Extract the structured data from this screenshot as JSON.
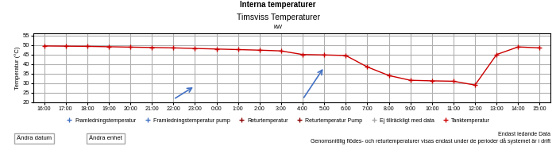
{
  "chart_data": {
    "type": "line",
    "header": "Interna temperaturer",
    "title": "Timsviss Temperaturer",
    "subtitle": "kW",
    "ylabel": "Temperatur (°C)",
    "categories": [
      "16:00",
      "17:00",
      "18:00",
      "19:00",
      "20:00",
      "21:00",
      "22:00",
      "23:00",
      "0:00",
      "1:00",
      "2:00",
      "3:00",
      "4:00",
      "5:00",
      "6:00",
      "7:00",
      "8:00",
      "9:00",
      "10:00",
      "11:00",
      "12:00",
      "13:00",
      "14:00",
      "15:00"
    ],
    "series": [
      {
        "values": [
          49.5,
          49.4,
          49.3,
          49.1,
          48.9,
          48.7,
          48.5,
          48.2,
          47.9,
          47.6,
          47.3,
          46.9,
          45.0,
          44.8,
          44.5,
          38.5,
          34.0,
          31.5,
          31.2,
          31.0,
          29.0,
          45.0,
          49.0,
          48.5
        ],
        "color": "#cc0000",
        "marker": "plus"
      }
    ],
    "arrows": [
      {
        "x": [
          "22:00",
          "23:00"
        ],
        "y": [
          21.5,
          28.5
        ],
        "color": "#4472c4"
      },
      {
        "x": [
          "4:00",
          "5:00"
        ],
        "y": [
          21.5,
          38.5
        ],
        "color": "#4472c4"
      }
    ],
    "ylim": [
      20,
      56
    ],
    "yticks": [
      20,
      25,
      30,
      35,
      40,
      45,
      50,
      55
    ],
    "grid": true,
    "legend": "lower center",
    "legend_entries": [
      {
        "name": "Framledningstemperatur",
        "color": "#4472c4",
        "marker": "plus"
      },
      {
        "name": "Framledningstemperatur pump",
        "color": "#4472c4",
        "marker": "plus"
      },
      {
        "name": "Returtemperatur",
        "color": "#8b0000",
        "marker": "plus"
      },
      {
        "name": "Returtemperatur Pump",
        "color": "#8b0000",
        "marker": "plus"
      },
      {
        "name": "Ej tillräckligt med data",
        "color": "#aaaaaa",
        "marker": "plus"
      },
      {
        "name": "Tanktemperatur",
        "color": "#cc0000",
        "marker": "plus"
      }
    ],
    "note": "Endast ledande Data\nGenomsnittlig flödes- och returtemperaturer visas endast under de perioder då systemet är i drift",
    "buttons": [
      "Ändra datum",
      "Ändra enhet"
    ]
  }
}
